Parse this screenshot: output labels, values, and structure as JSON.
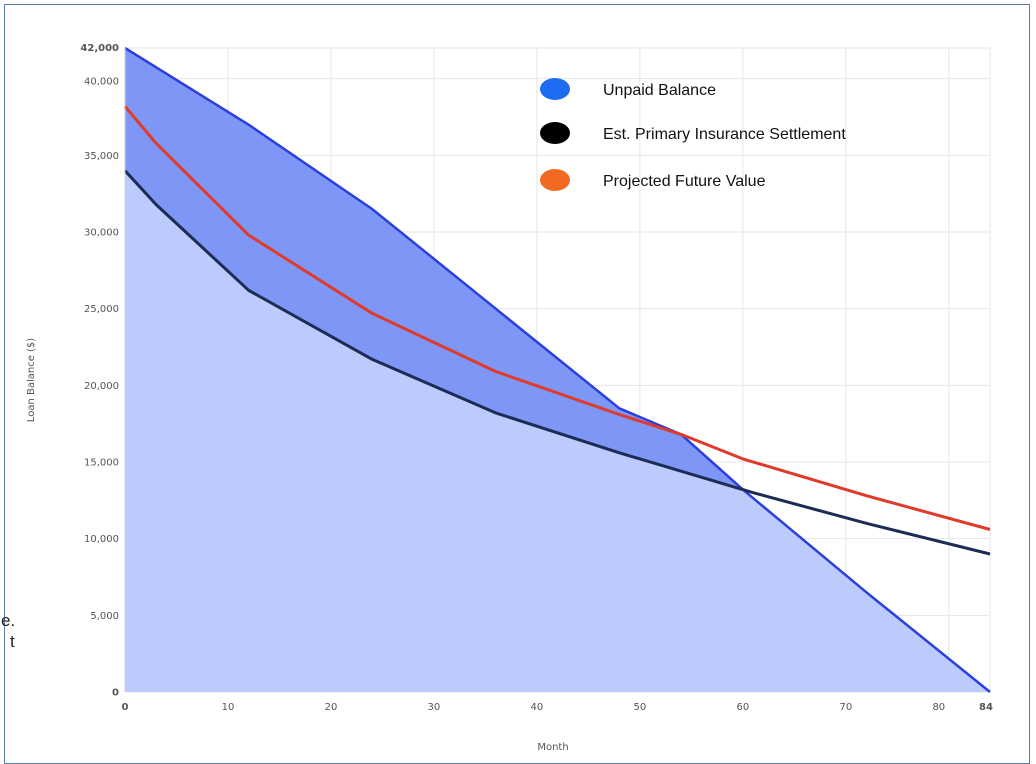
{
  "margin_fragments": {
    "line1": "e.",
    "line2": "t"
  },
  "chart_data": {
    "type": "area",
    "xlabel": "Month",
    "ylabel": "Loan Balance ($)",
    "xlim": [
      0,
      84
    ],
    "ylim": [
      0,
      42000
    ],
    "x_ticks": [
      "0",
      "10",
      "20",
      "30",
      "40",
      "50",
      "60",
      "70",
      "80",
      "84"
    ],
    "y_ticks": [
      "0",
      "5,000",
      "10,000",
      "15,000",
      "20,000",
      "25,000",
      "30,000",
      "35,000",
      "40,000",
      "42,000"
    ],
    "grid": true,
    "legend_position": "top-right",
    "colors": {
      "unpaid_fill_light": "#bccbfb",
      "unpaid_fill_dark": "#7e97f6",
      "unpaid_line": "#2a3fe0",
      "settlement_line": "#1c2c55",
      "future_value_line": "#e03a2a",
      "legend_unpaid": "#1e6cf2",
      "legend_settlement": "#000000",
      "legend_future": "#f26a21"
    },
    "series": [
      {
        "name": "Unpaid Balance",
        "x": [
          0,
          12,
          24,
          36,
          48,
          54,
          60,
          72,
          84
        ],
        "values": [
          42000,
          37000,
          31500,
          25000,
          18500,
          16800,
          13200,
          6500,
          0
        ]
      },
      {
        "name": "Est. Primary Insurance Settlement",
        "x": [
          0,
          3,
          12,
          24,
          36,
          48,
          61,
          72,
          84
        ],
        "values": [
          34000,
          31800,
          26200,
          21700,
          18200,
          15600,
          13000,
          11000,
          9000
        ]
      },
      {
        "name": "Projected Future Value",
        "x": [
          0,
          3,
          12,
          24,
          36,
          48,
          54,
          60,
          72,
          84
        ],
        "values": [
          38200,
          35800,
          29800,
          24700,
          20900,
          18100,
          16800,
          15200,
          12800,
          10600
        ]
      }
    ]
  }
}
